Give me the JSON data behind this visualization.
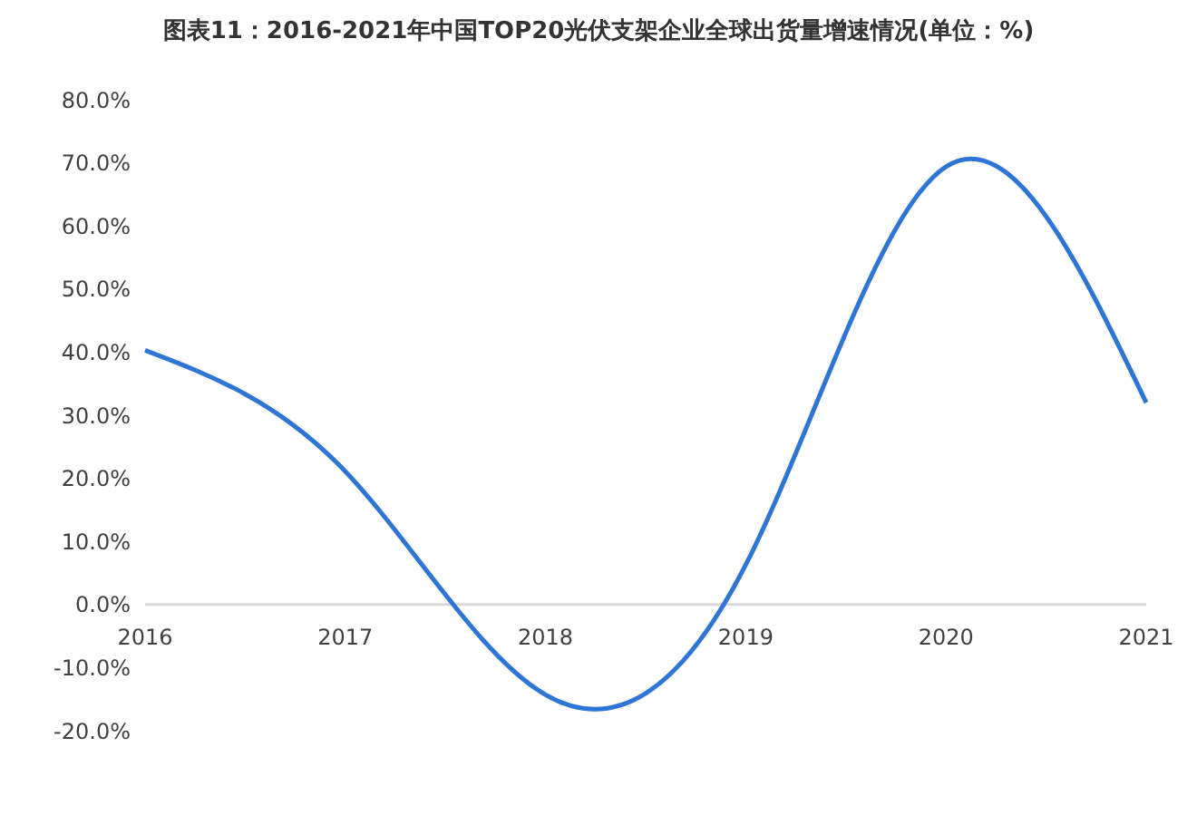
{
  "chart_data": {
    "type": "line",
    "title": "图表11：2016-2021年中国TOP20光伏支架企业全球出货量增速情况(单位：%)",
    "categories": [
      "2016",
      "2017",
      "2018",
      "2019",
      "2020",
      "2021"
    ],
    "series": [
      {
        "color": "#2e75d6",
        "values": [
          40.3,
          21.1,
          -14.3,
          6.3,
          69.4,
          32.0
        ]
      }
    ],
    "ylim": [
      -20,
      80
    ],
    "yticks": [
      {
        "value": -20,
        "label": "-20.0%"
      },
      {
        "value": -10,
        "label": "-10.0%"
      },
      {
        "value": 0,
        "label": "0.0%"
      },
      {
        "value": 10,
        "label": "10.0%"
      },
      {
        "value": 20,
        "label": "20.0%"
      },
      {
        "value": 30,
        "label": "30.0%"
      },
      {
        "value": 40,
        "label": "40.0%"
      },
      {
        "value": 50,
        "label": "50.0%"
      },
      {
        "value": 60,
        "label": "60.0%"
      },
      {
        "value": 70,
        "label": "70.0%"
      },
      {
        "value": 80,
        "label": "80.0%"
      }
    ],
    "grid": false,
    "legend": false,
    "marker": "none",
    "line_style": "solid"
  }
}
